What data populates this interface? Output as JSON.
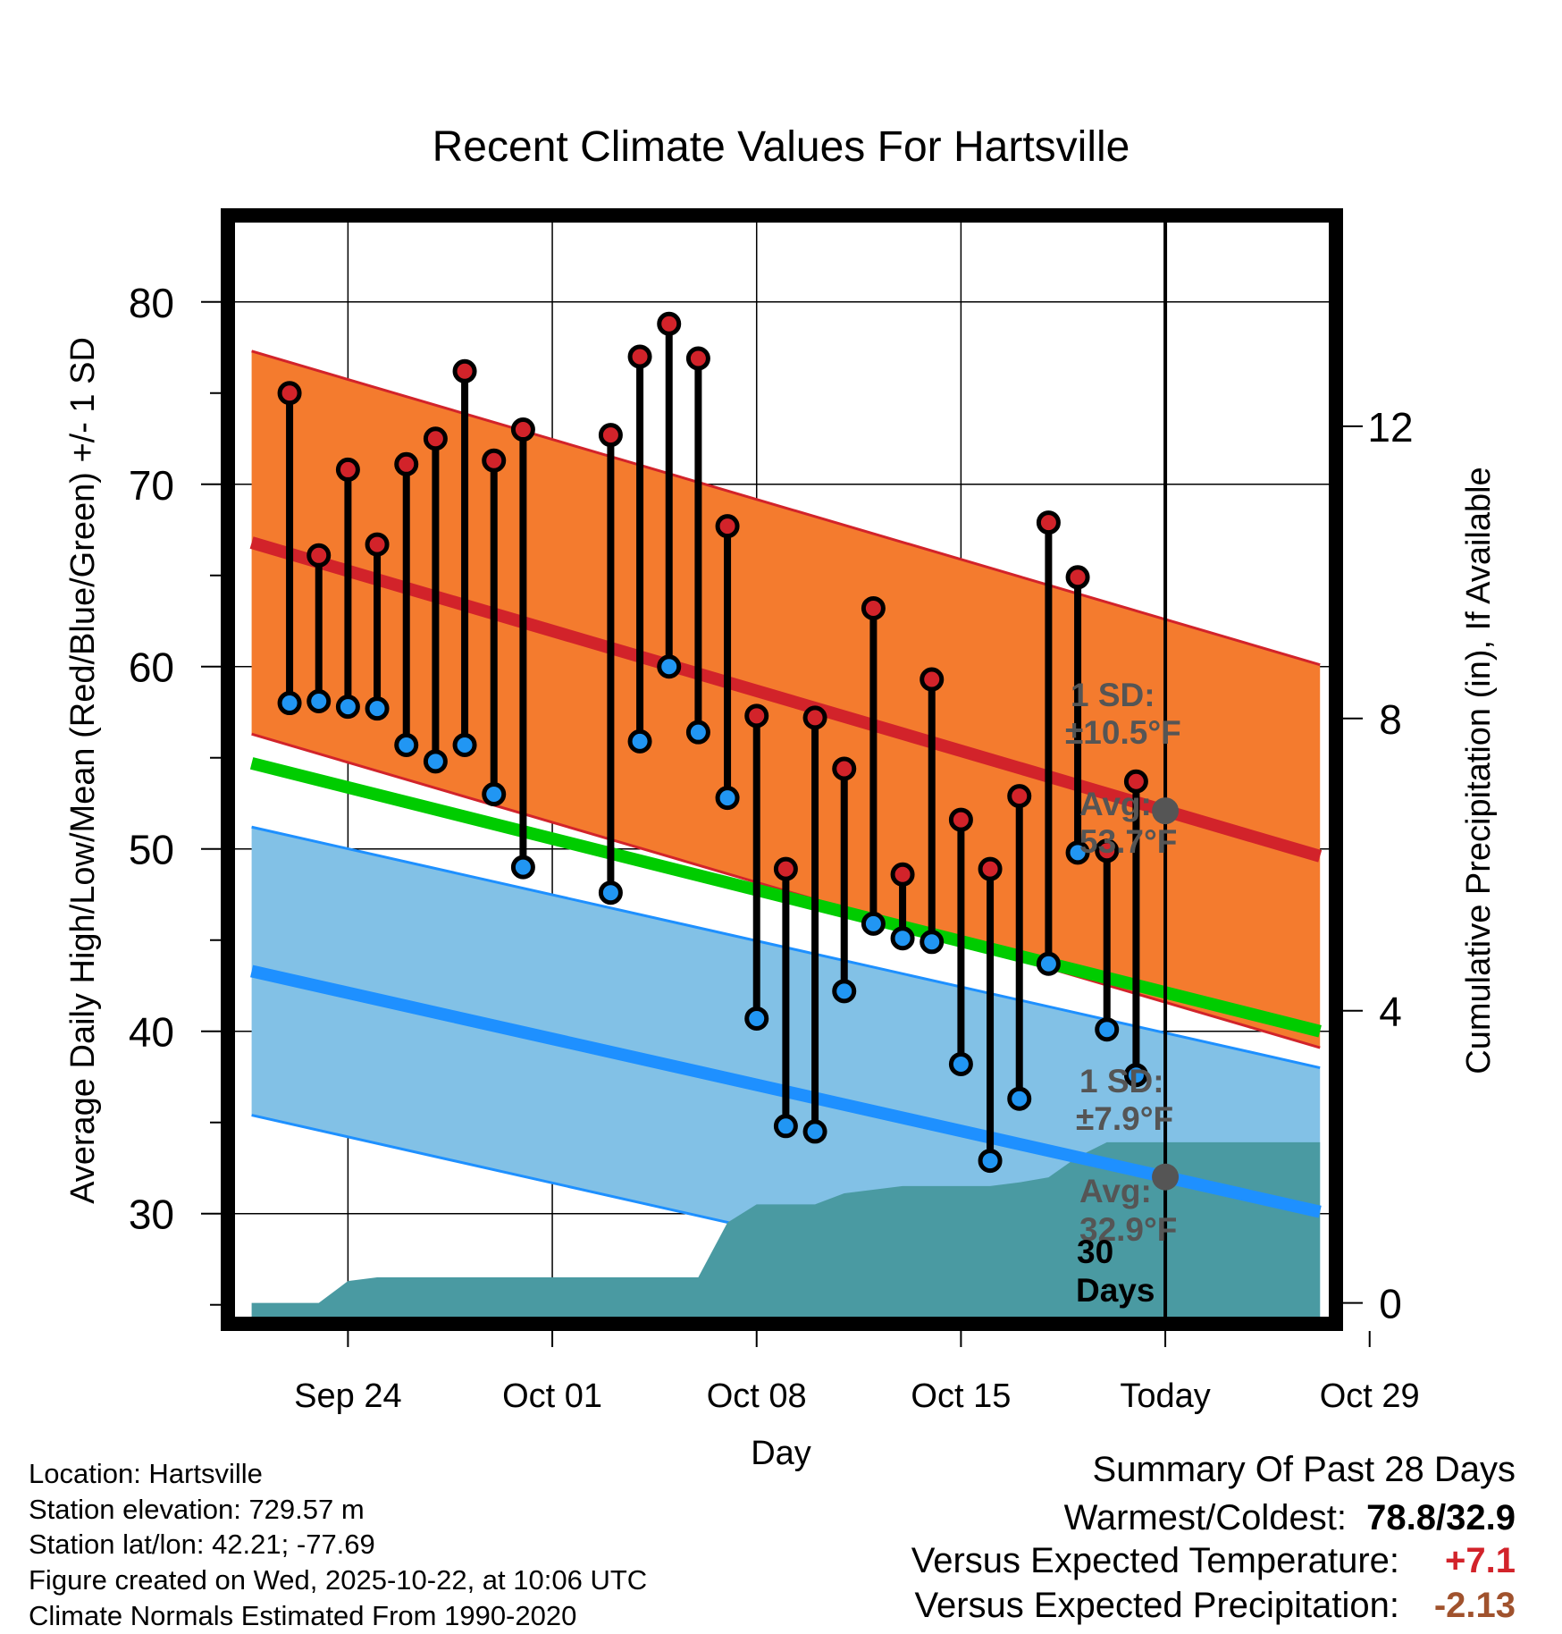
{
  "chart_data": {
    "type": "line",
    "title": "Recent Climate Values For Hartsville",
    "xlabel": "Day",
    "ylabel": "Average Daily High/Low/Mean (Red/Blue/Green) +/- 1 SD",
    "y2label": "Cumulative Precipitation (in), If Available",
    "xlim": [
      -3.9,
      33.6
    ],
    "ylim": [
      24.3,
      84.4
    ],
    "y2lim": [
      -0.2,
      14.8
    ],
    "yticks": [
      "30",
      "40",
      "50",
      "60",
      "70",
      "80"
    ],
    "y2ticks": [
      "0",
      "4",
      "8",
      "12"
    ],
    "xticks": [
      {
        "day": 0,
        "label": "Sep 24"
      },
      {
        "day": 7,
        "label": "Oct 01"
      },
      {
        "day": 14,
        "label": "Oct 08"
      },
      {
        "day": 21,
        "label": "Oct 15"
      },
      {
        "day": 28,
        "label": "Today"
      },
      {
        "day": 35,
        "label": "Oct 29"
      }
    ],
    "today_index": 28,
    "normals": {
      "high_start": 66.8,
      "high_end": 49.6,
      "high_sd": 10.5,
      "low_start": 43.3,
      "low_end": 30.1,
      "low_sd": 7.9,
      "mean_start": 54.7,
      "mean_end": 40.0
    },
    "highs": [
      {
        "day": -2,
        "value": 75.0
      },
      {
        "day": -1,
        "value": 66.1
      },
      {
        "day": 0,
        "value": 70.8
      },
      {
        "day": 1,
        "value": 66.7
      },
      {
        "day": 2,
        "value": 71.1
      },
      {
        "day": 3,
        "value": 72.5
      },
      {
        "day": 4,
        "value": 76.2
      },
      {
        "day": 5,
        "value": 71.3
      },
      {
        "day": 6,
        "value": 73.0
      },
      {
        "day": 9,
        "value": 72.7
      },
      {
        "day": 10,
        "value": 77.0
      },
      {
        "day": 11,
        "value": 78.8
      },
      {
        "day": 12,
        "value": 76.9
      },
      {
        "day": 13,
        "value": 67.7
      },
      {
        "day": 14,
        "value": 57.3
      },
      {
        "day": 15,
        "value": 48.9
      },
      {
        "day": 16,
        "value": 57.2
      },
      {
        "day": 17,
        "value": 54.4
      },
      {
        "day": 18,
        "value": 63.2
      },
      {
        "day": 19,
        "value": 48.6
      },
      {
        "day": 20,
        "value": 59.3
      },
      {
        "day": 21,
        "value": 51.6
      },
      {
        "day": 22,
        "value": 48.9
      },
      {
        "day": 23,
        "value": 52.9
      },
      {
        "day": 24,
        "value": 67.9
      },
      {
        "day": 25,
        "value": 64.9
      },
      {
        "day": 26,
        "value": 49.9
      },
      {
        "day": 27,
        "value": 53.7
      }
    ],
    "lows": [
      {
        "day": -2,
        "value": 58.0
      },
      {
        "day": -1,
        "value": 58.1
      },
      {
        "day": 0,
        "value": 57.8
      },
      {
        "day": 1,
        "value": 57.7
      },
      {
        "day": 2,
        "value": 55.7
      },
      {
        "day": 3,
        "value": 54.8
      },
      {
        "day": 4,
        "value": 55.7
      },
      {
        "day": 5,
        "value": 53.0
      },
      {
        "day": 6,
        "value": 49.0
      },
      {
        "day": 9,
        "value": 47.6
      },
      {
        "day": 10,
        "value": 55.9
      },
      {
        "day": 11,
        "value": 60.0
      },
      {
        "day": 12,
        "value": 56.4
      },
      {
        "day": 13,
        "value": 52.8
      },
      {
        "day": 14,
        "value": 40.7
      },
      {
        "day": 15,
        "value": 34.8
      },
      {
        "day": 16,
        "value": 34.5
      },
      {
        "day": 17,
        "value": 42.2
      },
      {
        "day": 18,
        "value": 45.9
      },
      {
        "day": 19,
        "value": 45.1
      },
      {
        "day": 20,
        "value": 44.9
      },
      {
        "day": 21,
        "value": 38.2
      },
      {
        "day": 22,
        "value": 32.9
      },
      {
        "day": 23,
        "value": 36.3
      },
      {
        "day": 24,
        "value": 43.7
      },
      {
        "day": 25,
        "value": 49.8
      },
      {
        "day": 26,
        "value": 40.1
      },
      {
        "day": 27,
        "value": 37.6
      }
    ],
    "precip": [
      {
        "day": -3.3,
        "value": 0.0
      },
      {
        "day": -1,
        "value": 0.0
      },
      {
        "day": 0,
        "value": 0.3
      },
      {
        "day": 1,
        "value": 0.35
      },
      {
        "day": 12,
        "value": 0.35
      },
      {
        "day": 13,
        "value": 1.1
      },
      {
        "day": 14,
        "value": 1.35
      },
      {
        "day": 16,
        "value": 1.35
      },
      {
        "day": 17,
        "value": 1.5
      },
      {
        "day": 19,
        "value": 1.6
      },
      {
        "day": 22,
        "value": 1.6
      },
      {
        "day": 23,
        "value": 1.65
      },
      {
        "day": 24,
        "value": 1.72
      },
      {
        "day": 25,
        "value": 2.0
      },
      {
        "day": 26,
        "value": 2.2
      },
      {
        "day": 33.3,
        "value": 2.2
      }
    ],
    "annotations": {
      "high_sd_label": "1 SD:",
      "high_sd_value": "±10.5°F",
      "high_avg_label": "Avg:",
      "high_avg_value": "53.7°F",
      "low_sd_label": "1 SD:",
      "low_sd_value": "±7.9°F",
      "low_avg_label": "Avg:",
      "low_avg_value": "32.9°F",
      "window_number": "30",
      "window_unit": "Days"
    },
    "colors": {
      "high_band": "#f47b2e",
      "high_line": "#d2232a",
      "low_band": "#82c1e6",
      "low_line": "#1e90ff",
      "mean_line": "#00cc00",
      "precip": "#4a9aa2",
      "high_dot": "#d2232a",
      "low_dot": "#2196f3",
      "annotation": "#555555"
    }
  },
  "info": {
    "location": "Location: Hartsville",
    "elevation": "Station elevation: 729.57 m",
    "latlon": "Station lat/lon: 42.21; -77.69",
    "created": "Figure created on Wed, 2025-10-22, at 10:06 UTC",
    "normals": "Climate Normals Estimated From 1990-2020"
  },
  "summary": {
    "title": "Summary Of Past 28 Days",
    "warm_cold_label": "Warmest/Coldest:",
    "warm_cold_value": "78.8/32.9",
    "temp_label": "Versus Expected Temperature:",
    "temp_value": "+7.1",
    "temp_color": "#d2232a",
    "precip_label": "Versus Expected Precipitation:",
    "precip_value": "-2.13",
    "precip_color": "#a0522d"
  }
}
